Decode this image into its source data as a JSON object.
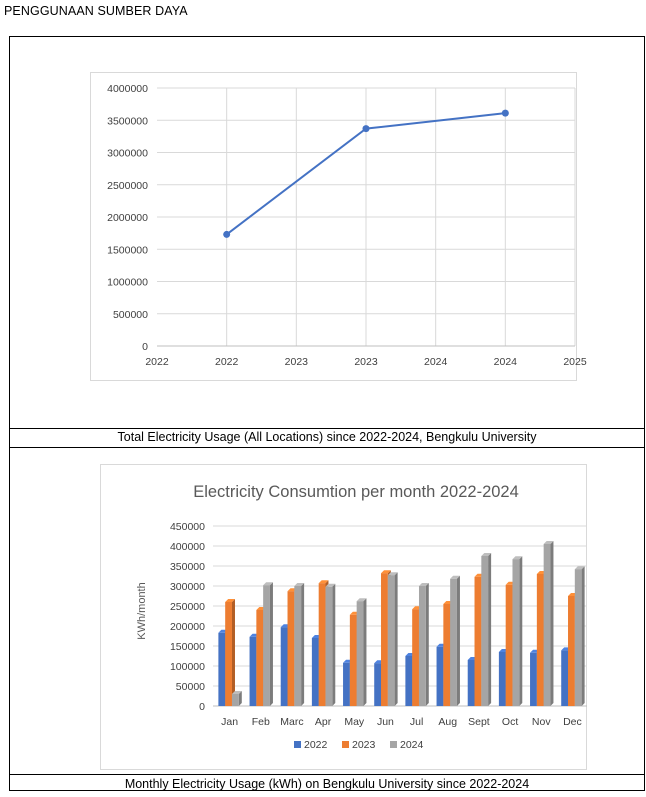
{
  "page": {
    "heading": "PENGGUNAAN SUMBER DAYA"
  },
  "captions": {
    "total": "Total Electricity Usage (All Locations) since 2022-2024, Bengkulu University",
    "monthly": "Monthly Electricity Usage (kWh) on Bengkulu University since  2022-2024"
  },
  "chart_data": [
    {
      "type": "line",
      "title": "",
      "xlabel": "",
      "ylabel": "",
      "x_tick_labels": [
        "2022",
        "2022",
        "2023",
        "2023",
        "2024",
        "2024",
        "2025"
      ],
      "y_tick_labels": [
        "0",
        "500000",
        "1000000",
        "1500000",
        "2000000",
        "2500000",
        "3000000",
        "3500000",
        "4000000"
      ],
      "xlim": [
        2022,
        2025
      ],
      "ylim": [
        0,
        4000000
      ],
      "grid": true,
      "series": [
        {
          "x": [
            2022.5,
            2023.5,
            2024.5
          ],
          "values": [
            1730000,
            3370000,
            3610000
          ],
          "color": "#4472c4"
        }
      ]
    },
    {
      "type": "bar",
      "title": "Electricity Consumtion per month 2022-2024",
      "xlabel": "",
      "ylabel": "KWh/month",
      "categories": [
        "Jan",
        "Feb",
        "Marc",
        "Apr",
        "May",
        "Jun",
        "Jul",
        "Aug",
        "Sept",
        "Oct",
        "Nov",
        "Dec"
      ],
      "y_tick_labels": [
        "0",
        "50000",
        "100000",
        "150000",
        "200000",
        "250000",
        "300000",
        "350000",
        "400000",
        "450000"
      ],
      "ylim": [
        0,
        450000
      ],
      "grid": true,
      "legend_position": "bottom",
      "series": [
        {
          "name": "2022",
          "color": "#4472c4",
          "values": [
            183000,
            173000,
            197000,
            170000,
            108000,
            107000,
            125000,
            148000,
            115000,
            135000,
            133000,
            139000
          ]
        },
        {
          "name": "2023",
          "color": "#ed7d31",
          "values": [
            260000,
            240000,
            287000,
            307000,
            228000,
            332000,
            242000,
            255000,
            323000,
            303000,
            330000,
            275000
          ]
        },
        {
          "name": "2024",
          "color": "#a5a5a5",
          "values": [
            30000,
            302000,
            300000,
            298000,
            262000,
            327000,
            300000,
            318000,
            375000,
            367000,
            405000,
            342000
          ]
        }
      ]
    }
  ]
}
